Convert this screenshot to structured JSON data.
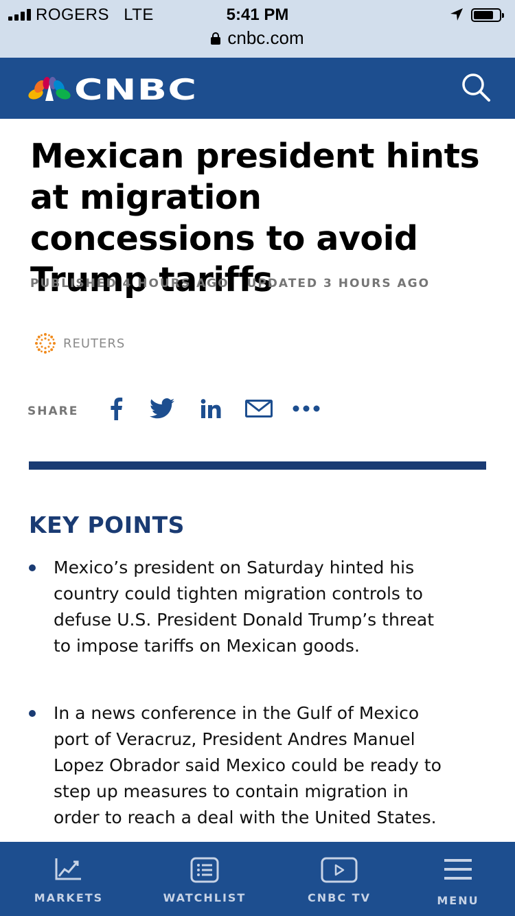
{
  "status_bar": {
    "carrier": "ROGERS",
    "network": "LTE",
    "time": "5:41 PM"
  },
  "browser": {
    "url": "cnbc.com"
  },
  "header": {
    "logo_text": "CNBC",
    "search_icon": "search-icon"
  },
  "article": {
    "headline": "Mexican president hints at migration concessions to avoid Trump tariffs",
    "published": "PUBLISHED 4 HOURS AGO",
    "updated": "UPDATED 3 HOURS AGO",
    "source": "REUTERS"
  },
  "share": {
    "label": "SHARE",
    "buttons": [
      "facebook-icon",
      "twitter-icon",
      "linkedin-icon",
      "email-icon",
      "more-icon"
    ]
  },
  "key_points": {
    "title": "KEY POINTS",
    "items": [
      "Mexico’s president on Saturday hinted his country could tighten migration controls to defuse U.S. President Donald Trump’s threat to impose tariffs on Mexican goods.",
      "In a news conference in the Gulf of Mexico port of Veracruz, President Andres Manuel Lopez Obrador said Mexico could be ready to step up measures to contain migration in order to reach a deal with the United States."
    ]
  },
  "bottom_nav": {
    "items": [
      {
        "label": "MARKETS",
        "icon": "chart-icon"
      },
      {
        "label": "WATCHLIST",
        "icon": "list-icon"
      },
      {
        "label": "CNBC TV",
        "icon": "play-icon"
      },
      {
        "label": "MENU",
        "icon": "hamburger-icon"
      }
    ]
  },
  "colors": {
    "brand_blue": "#1d4e8f",
    "accent_navy": "#1a3b73",
    "status_bar": "#d2deec"
  }
}
